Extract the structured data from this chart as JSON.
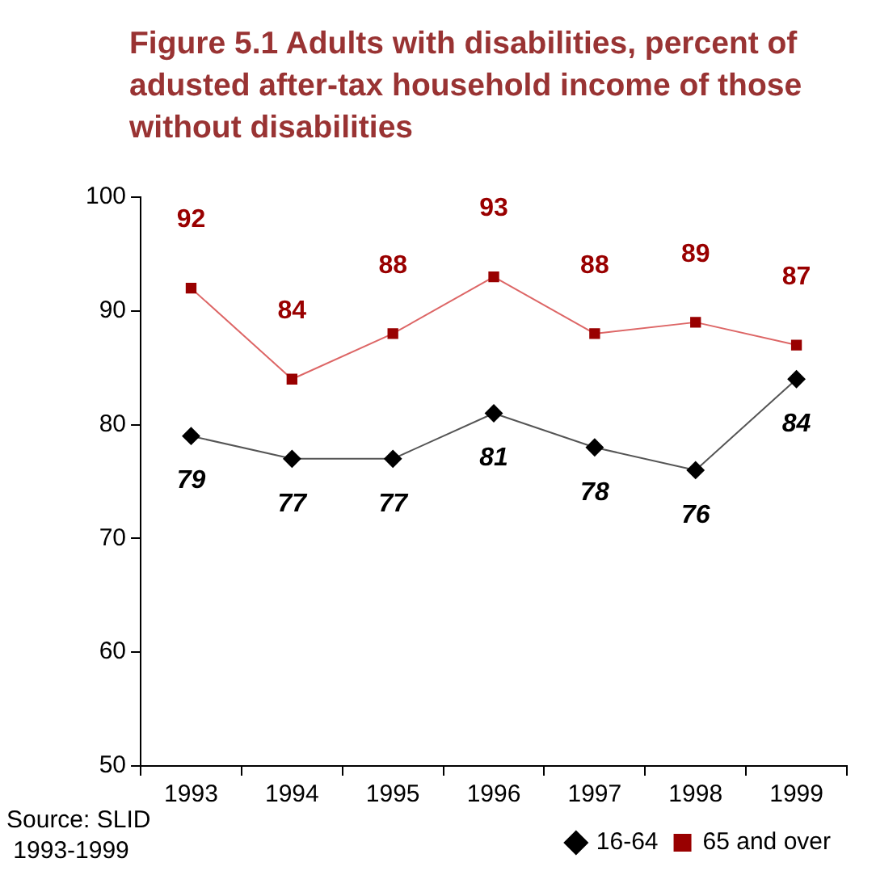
{
  "chart_data": {
    "type": "line",
    "title": "Figure 5.1 Adults with disabilities, percent of adusted after-tax household income of those without disabilities",
    "categories": [
      "1993",
      "1994",
      "1995",
      "1996",
      "1997",
      "1998",
      "1999"
    ],
    "series": [
      {
        "name": "16-64",
        "color": "#000000",
        "marker": "diamond",
        "values": [
          79,
          77,
          77,
          81,
          78,
          76,
          84
        ]
      },
      {
        "name": "65 and over",
        "color": "#990000",
        "marker": "square",
        "values": [
          92,
          84,
          88,
          93,
          88,
          89,
          87
        ]
      }
    ],
    "ylim": [
      50,
      100
    ],
    "yticks": [
      50,
      60,
      70,
      80,
      90,
      100
    ],
    "grid": false,
    "legend": "bottom",
    "data_labels": true,
    "annotations": [
      "Source: SLID\n 1993-1999"
    ]
  }
}
